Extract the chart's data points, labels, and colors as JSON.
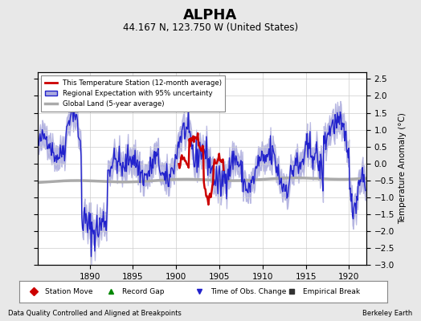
{
  "title": "ALPHA",
  "subtitle": "44.167 N, 123.750 W (United States)",
  "ylabel": "Temperature Anomaly (°C)",
  "xlabel_left": "Data Quality Controlled and Aligned at Breakpoints",
  "xlabel_right": "Berkeley Earth",
  "ylim": [
    -3,
    2.7
  ],
  "yticks": [
    -3,
    -2.5,
    -2,
    -1.5,
    -1,
    -0.5,
    0,
    0.5,
    1,
    1.5,
    2,
    2.5
  ],
  "xlim": [
    1884,
    1922
  ],
  "xticks": [
    1890,
    1895,
    1900,
    1905,
    1910,
    1915,
    1920
  ],
  "bg_color": "#e8e8e8",
  "plot_bg_color": "#ffffff",
  "grid_color": "#cccccc",
  "blue_line_color": "#2222cc",
  "red_line_color": "#cc0000",
  "gray_line_color": "#aaaaaa",
  "fill_color": "#aaaadd",
  "legend_items": [
    {
      "label": "This Temperature Station (12-month average)",
      "color": "#cc0000",
      "lw": 2.0
    },
    {
      "label": "Regional Expectation with 95% uncertainty",
      "color": "#2222cc",
      "lw": 1.5
    },
    {
      "label": "Global Land (5-year average)",
      "color": "#aaaaaa",
      "lw": 2.5
    }
  ],
  "bottom_legend": [
    {
      "label": "Station Move",
      "marker": "D",
      "color": "#cc0000"
    },
    {
      "label": "Record Gap",
      "marker": "^",
      "color": "#008800"
    },
    {
      "label": "Time of Obs. Change",
      "marker": "v",
      "color": "#2222cc"
    },
    {
      "label": "Empirical Break",
      "marker": "s",
      "color": "#333333"
    }
  ]
}
